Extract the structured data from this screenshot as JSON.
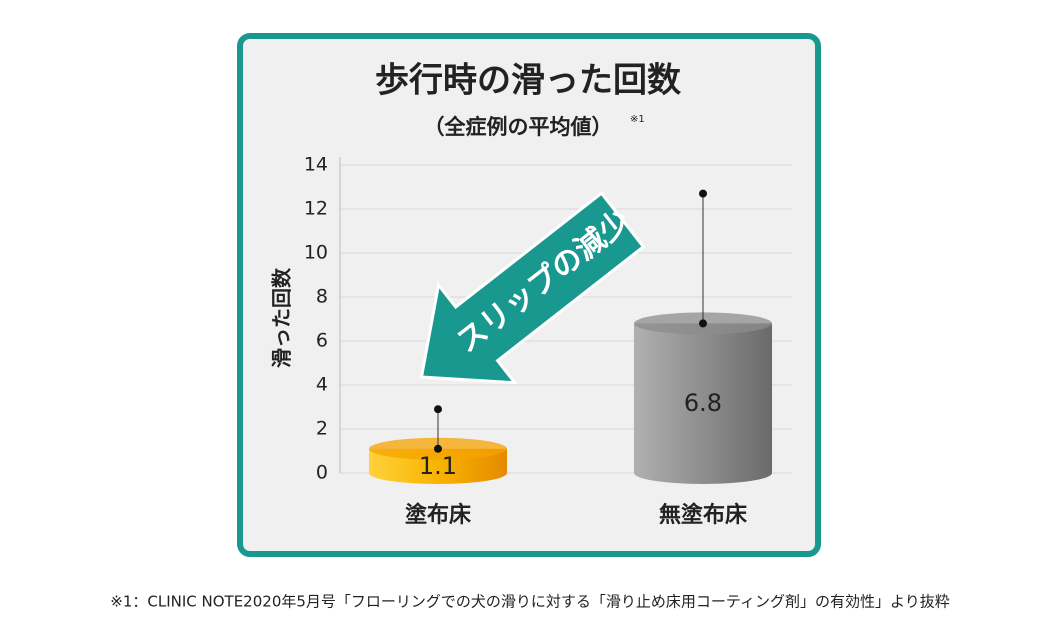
{
  "chart_data": {
    "type": "bar",
    "title": "歩行時の滑った回数",
    "subtitle": "（全症例の平均値）",
    "subtitle_note": "※1",
    "ylabel": "滑った回数",
    "annotation": "スリップの減少",
    "categories": [
      "塗布床",
      "無塗布床"
    ],
    "values": [
      1.1,
      6.8
    ],
    "errors": [
      1.8,
      5.9
    ],
    "colors": [
      "#f5a300",
      "#8c8c8c"
    ],
    "ylim": [
      0,
      14
    ],
    "yticks": [
      0,
      2,
      4,
      6,
      8,
      10,
      12,
      14
    ],
    "grid": true,
    "footnote": "※1：CLINIC NOTE2020年5月号「フローリングでの犬の滑りに対する「滑り止め床用コーティング剤」の有効性」より抜粋"
  }
}
